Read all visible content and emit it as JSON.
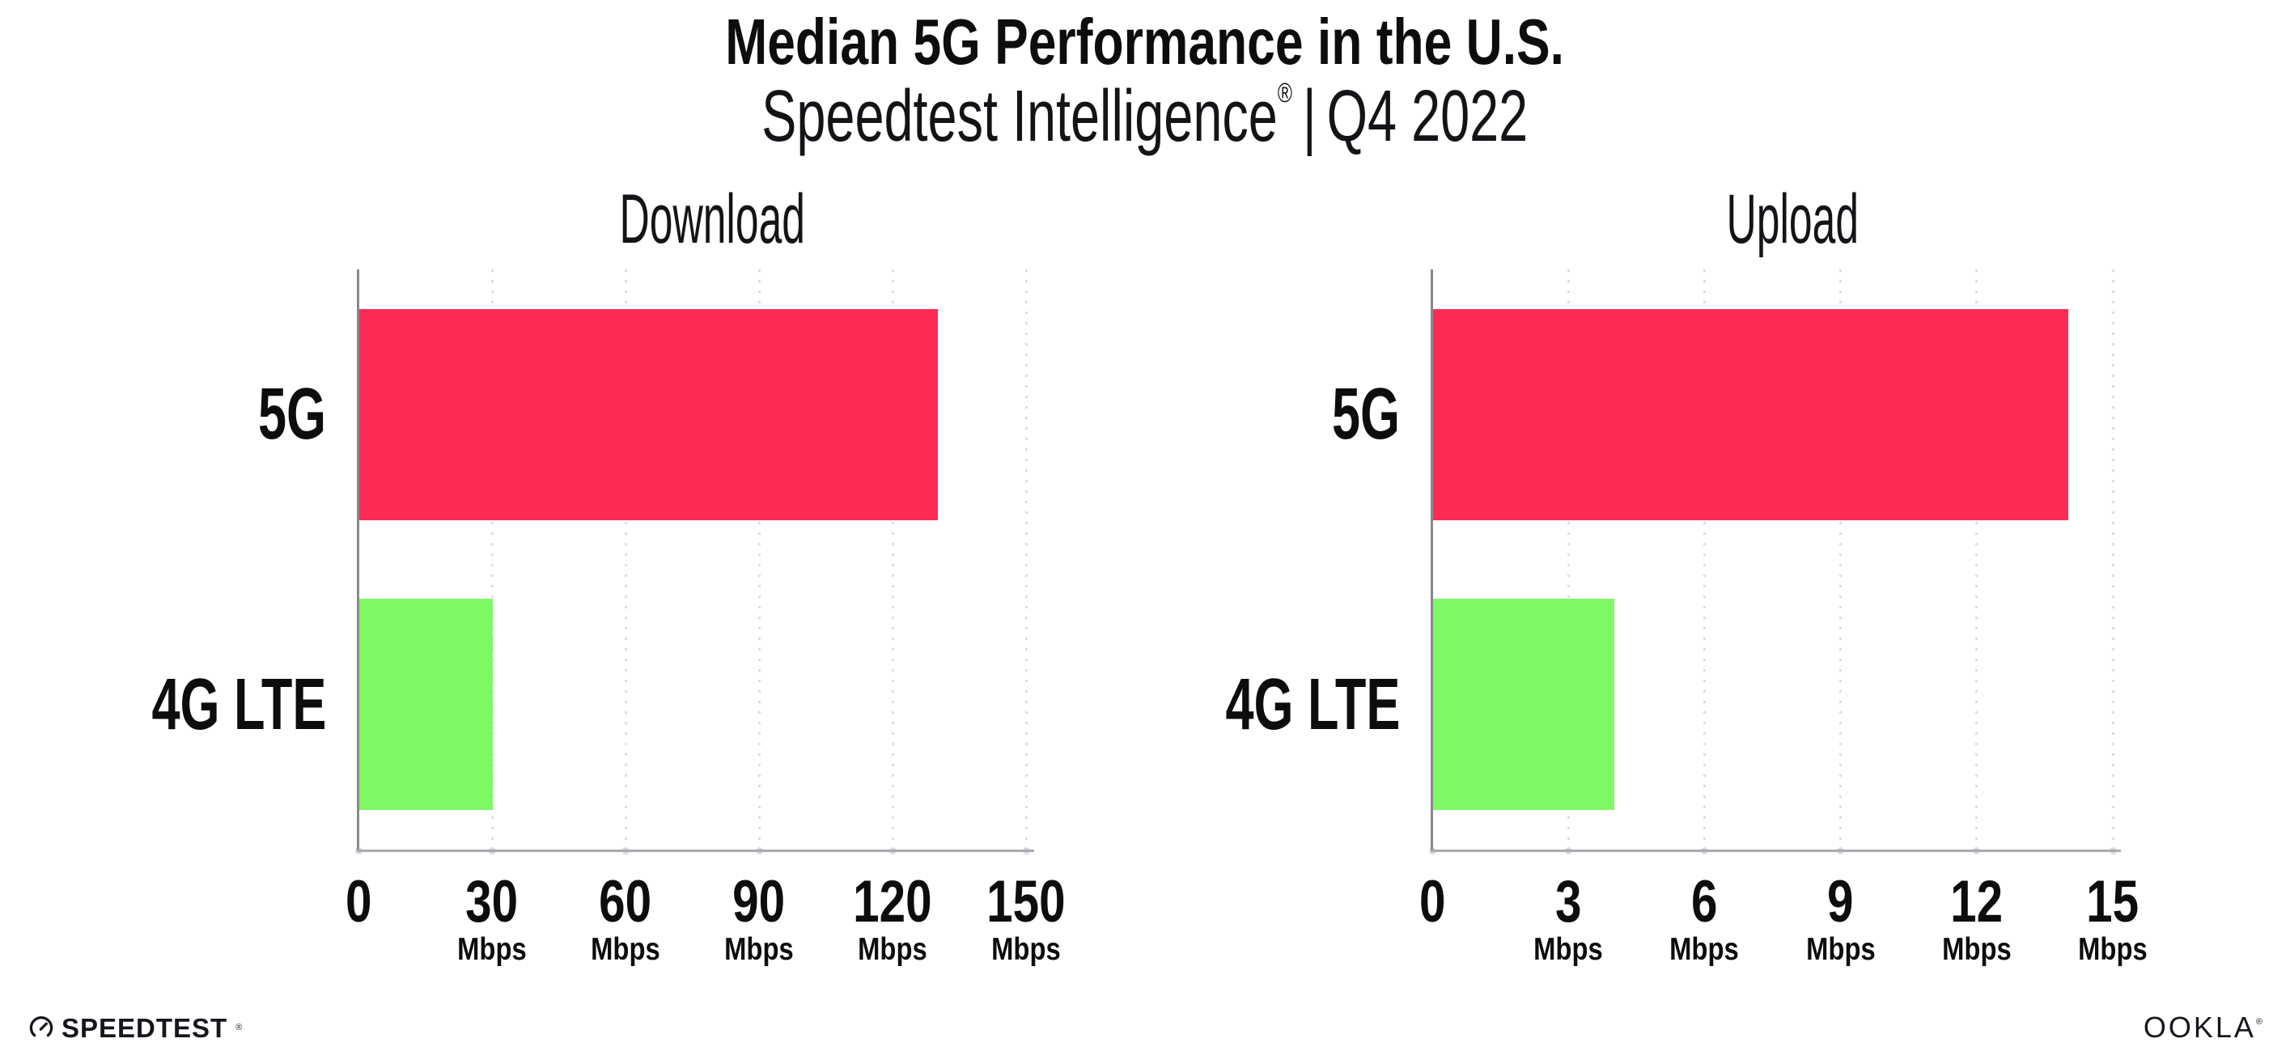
{
  "header": {
    "title": "Median 5G Performance in the U.S.",
    "subtitle_brand": "Speedtest Intelligence",
    "subtitle_reg": "®",
    "subtitle_divider": "|",
    "subtitle_period": "Q4 2022"
  },
  "chart_data": [
    {
      "type": "bar",
      "orientation": "horizontal",
      "title": "Download",
      "categories": [
        "5G",
        "4G LTE"
      ],
      "values": [
        130,
        30
      ],
      "unit": "Mbps",
      "xlabel": "",
      "xlim": [
        0,
        150
      ],
      "xticks": [
        0,
        30,
        60,
        90,
        120,
        150
      ],
      "bar_colors": [
        "#fc2c57",
        "#7ef863"
      ],
      "grid": "dotted-vertical",
      "legend": "none"
    },
    {
      "type": "bar",
      "orientation": "horizontal",
      "title": "Upload",
      "categories": [
        "5G",
        "4G LTE"
      ],
      "values": [
        14,
        4
      ],
      "unit": "Mbps",
      "xlabel": "",
      "xlim": [
        0,
        15
      ],
      "xticks": [
        0,
        3,
        6,
        9,
        12,
        15
      ],
      "bar_colors": [
        "#fc2c57",
        "#7ef863"
      ],
      "grid": "dotted-vertical",
      "legend": "none"
    }
  ],
  "footer": {
    "speedtest_label": "SPEEDTEST",
    "speedtest_reg": "®",
    "ookla_label": "OOKLA",
    "ookla_reg": "®"
  }
}
